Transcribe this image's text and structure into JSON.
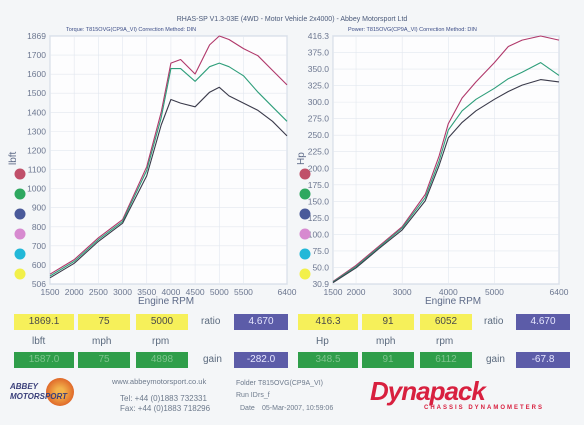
{
  "header": {
    "title": "RHAS-SP V1.3-03E  (4WD - Motor Vehicle 2x4000) - Abbey Motorsport Ltd"
  },
  "left_panel": {
    "title": "Torque: T815OVG(CP9A_VI)       Correction Method: DIN",
    "ylabel": "lbft",
    "xlabel": "Engine RPM",
    "y_ticks": [
      "1869",
      "1700",
      "1600",
      "1500",
      "1400",
      "1300",
      "1200",
      "1100",
      "1000",
      "900",
      "800",
      "700",
      "600",
      "506"
    ],
    "x_ticks": [
      "1500",
      "2000",
      "2500",
      "3000",
      "3500",
      "4000",
      "4500",
      "5000",
      "5500",
      "6400"
    ],
    "legend_colors": [
      "#c0506a",
      "#2ea860",
      "#4a5a9a",
      "#d78ad0",
      "#22b8d8",
      "#f2f04a"
    ]
  },
  "right_panel": {
    "title": "Power: T815OVG(CP9A_VI)       Correction Method: DIN",
    "ylabel": "Hp",
    "xlabel": "Engine RPM",
    "y_ticks": [
      "416.3",
      "375.0",
      "350.0",
      "325.0",
      "300.0",
      "275.0",
      "250.0",
      "225.0",
      "200.0",
      "175.0",
      "150.0",
      "125.0",
      "100.0",
      "75.0",
      "50.0",
      "30.9"
    ],
    "x_ticks": [
      "1500",
      "2000",
      "3000",
      "4000",
      "5000",
      "6400"
    ],
    "legend_colors": [
      "#c0506a",
      "#2ea860",
      "#4a5a9a",
      "#d78ad0",
      "#22b8d8",
      "#f2f04a"
    ]
  },
  "readout": {
    "left_top": [
      "1869.1",
      "75",
      "5000"
    ],
    "left_ratio_label": "ratio",
    "left_ratio_value": "4.670",
    "left_units": [
      "lbft",
      "mph",
      "rpm"
    ],
    "left_bottom": [
      "1587.0",
      "75",
      "4898"
    ],
    "left_gain_label": "gain",
    "left_gain_value": "-282.0",
    "right_top": [
      "416.3",
      "91",
      "6052"
    ],
    "right_ratio_label": "ratio",
    "right_ratio_value": "4.670",
    "right_units": [
      "Hp",
      "mph",
      "rpm"
    ],
    "right_bottom": [
      "348.5",
      "91",
      "6112"
    ],
    "right_gain_label": "gain",
    "right_gain_value": "-67.8"
  },
  "footer": {
    "logo_left": "ABBEY MOTORSPORT",
    "website": "www.abbeymotorsport.co.uk",
    "tel": "Tel: +44 (0)1883 732331",
    "fax": "Fax: +44 (0)1883 718296",
    "folder_label": "Folder",
    "folder_value": "T815OVG(CP9A_VI)",
    "run_label": "Run ID",
    "run_value": "rs_f",
    "date_label": "Date",
    "date_value": "05-Mar-2007, 10:59:06",
    "brand": "Dynapack",
    "brand_sub": "CHASSIS DYNAMOMETERS"
  },
  "chart_data": [
    {
      "type": "line",
      "title": "Torque: T815OVG(CP9A_VI)",
      "xlabel": "Engine RPM",
      "ylabel": "lbft",
      "ylim": [
        506,
        1869
      ],
      "xlim": [
        1500,
        6400
      ],
      "series": [
        {
          "name": "",
          "color": "#b0386a",
          "x": [
            1500,
            2000,
            2500,
            3000,
            3500,
            3800,
            4000,
            4200,
            4500,
            4800,
            5000,
            5200,
            5500,
            5800,
            6100,
            6400
          ],
          "y": [
            560,
            640,
            760,
            860,
            1150,
            1450,
            1720,
            1740,
            1660,
            1820,
            1869,
            1850,
            1800,
            1760,
            1680,
            1600
          ]
        },
        {
          "name": "",
          "color": "#2e9e7a",
          "x": [
            1500,
            2000,
            2500,
            3000,
            3500,
            3800,
            4000,
            4200,
            4500,
            4800,
            5000,
            5200,
            5500,
            5800,
            6100,
            6400
          ],
          "y": [
            550,
            630,
            750,
            850,
            1130,
            1420,
            1690,
            1690,
            1620,
            1700,
            1720,
            1700,
            1650,
            1560,
            1480,
            1400
          ]
        },
        {
          "name": "",
          "color": "#3a3a4a",
          "x": [
            1500,
            2000,
            2500,
            3000,
            3500,
            3800,
            4000,
            4200,
            4500,
            4800,
            5000,
            5200,
            5500,
            5800,
            6100,
            6400
          ],
          "y": [
            540,
            620,
            740,
            840,
            1100,
            1380,
            1520,
            1500,
            1480,
            1560,
            1587,
            1540,
            1500,
            1460,
            1400,
            1320
          ]
        }
      ]
    },
    {
      "type": "line",
      "title": "Power: T815OVG(CP9A_VI)",
      "xlabel": "Engine RPM",
      "ylabel": "Hp",
      "ylim": [
        30.9,
        416.3
      ],
      "xlim": [
        1500,
        6400
      ],
      "series": [
        {
          "name": "",
          "color": "#b0386a",
          "x": [
            1500,
            2000,
            2500,
            3000,
            3500,
            3800,
            4000,
            4300,
            4600,
            5000,
            5300,
            5600,
            6000,
            6400
          ],
          "y": [
            35,
            60,
            90,
            120,
            170,
            230,
            280,
            320,
            345,
            375,
            400,
            410,
            416.3,
            410
          ]
        },
        {
          "name": "",
          "color": "#2e9e7a",
          "x": [
            1500,
            2000,
            2500,
            3000,
            3500,
            3800,
            4000,
            4300,
            4600,
            5000,
            5300,
            5600,
            6000,
            6400
          ],
          "y": [
            34,
            58,
            88,
            118,
            165,
            222,
            270,
            300,
            318,
            335,
            350,
            360,
            375,
            355
          ]
        },
        {
          "name": "",
          "color": "#3a3a4a",
          "x": [
            1500,
            2000,
            2500,
            3000,
            3500,
            3800,
            4000,
            4300,
            4600,
            5000,
            5300,
            5600,
            6000,
            6400
          ],
          "y": [
            33,
            56,
            86,
            115,
            160,
            215,
            258,
            282,
            300,
            318,
            330,
            340,
            348.5,
            345
          ]
        }
      ]
    }
  ]
}
